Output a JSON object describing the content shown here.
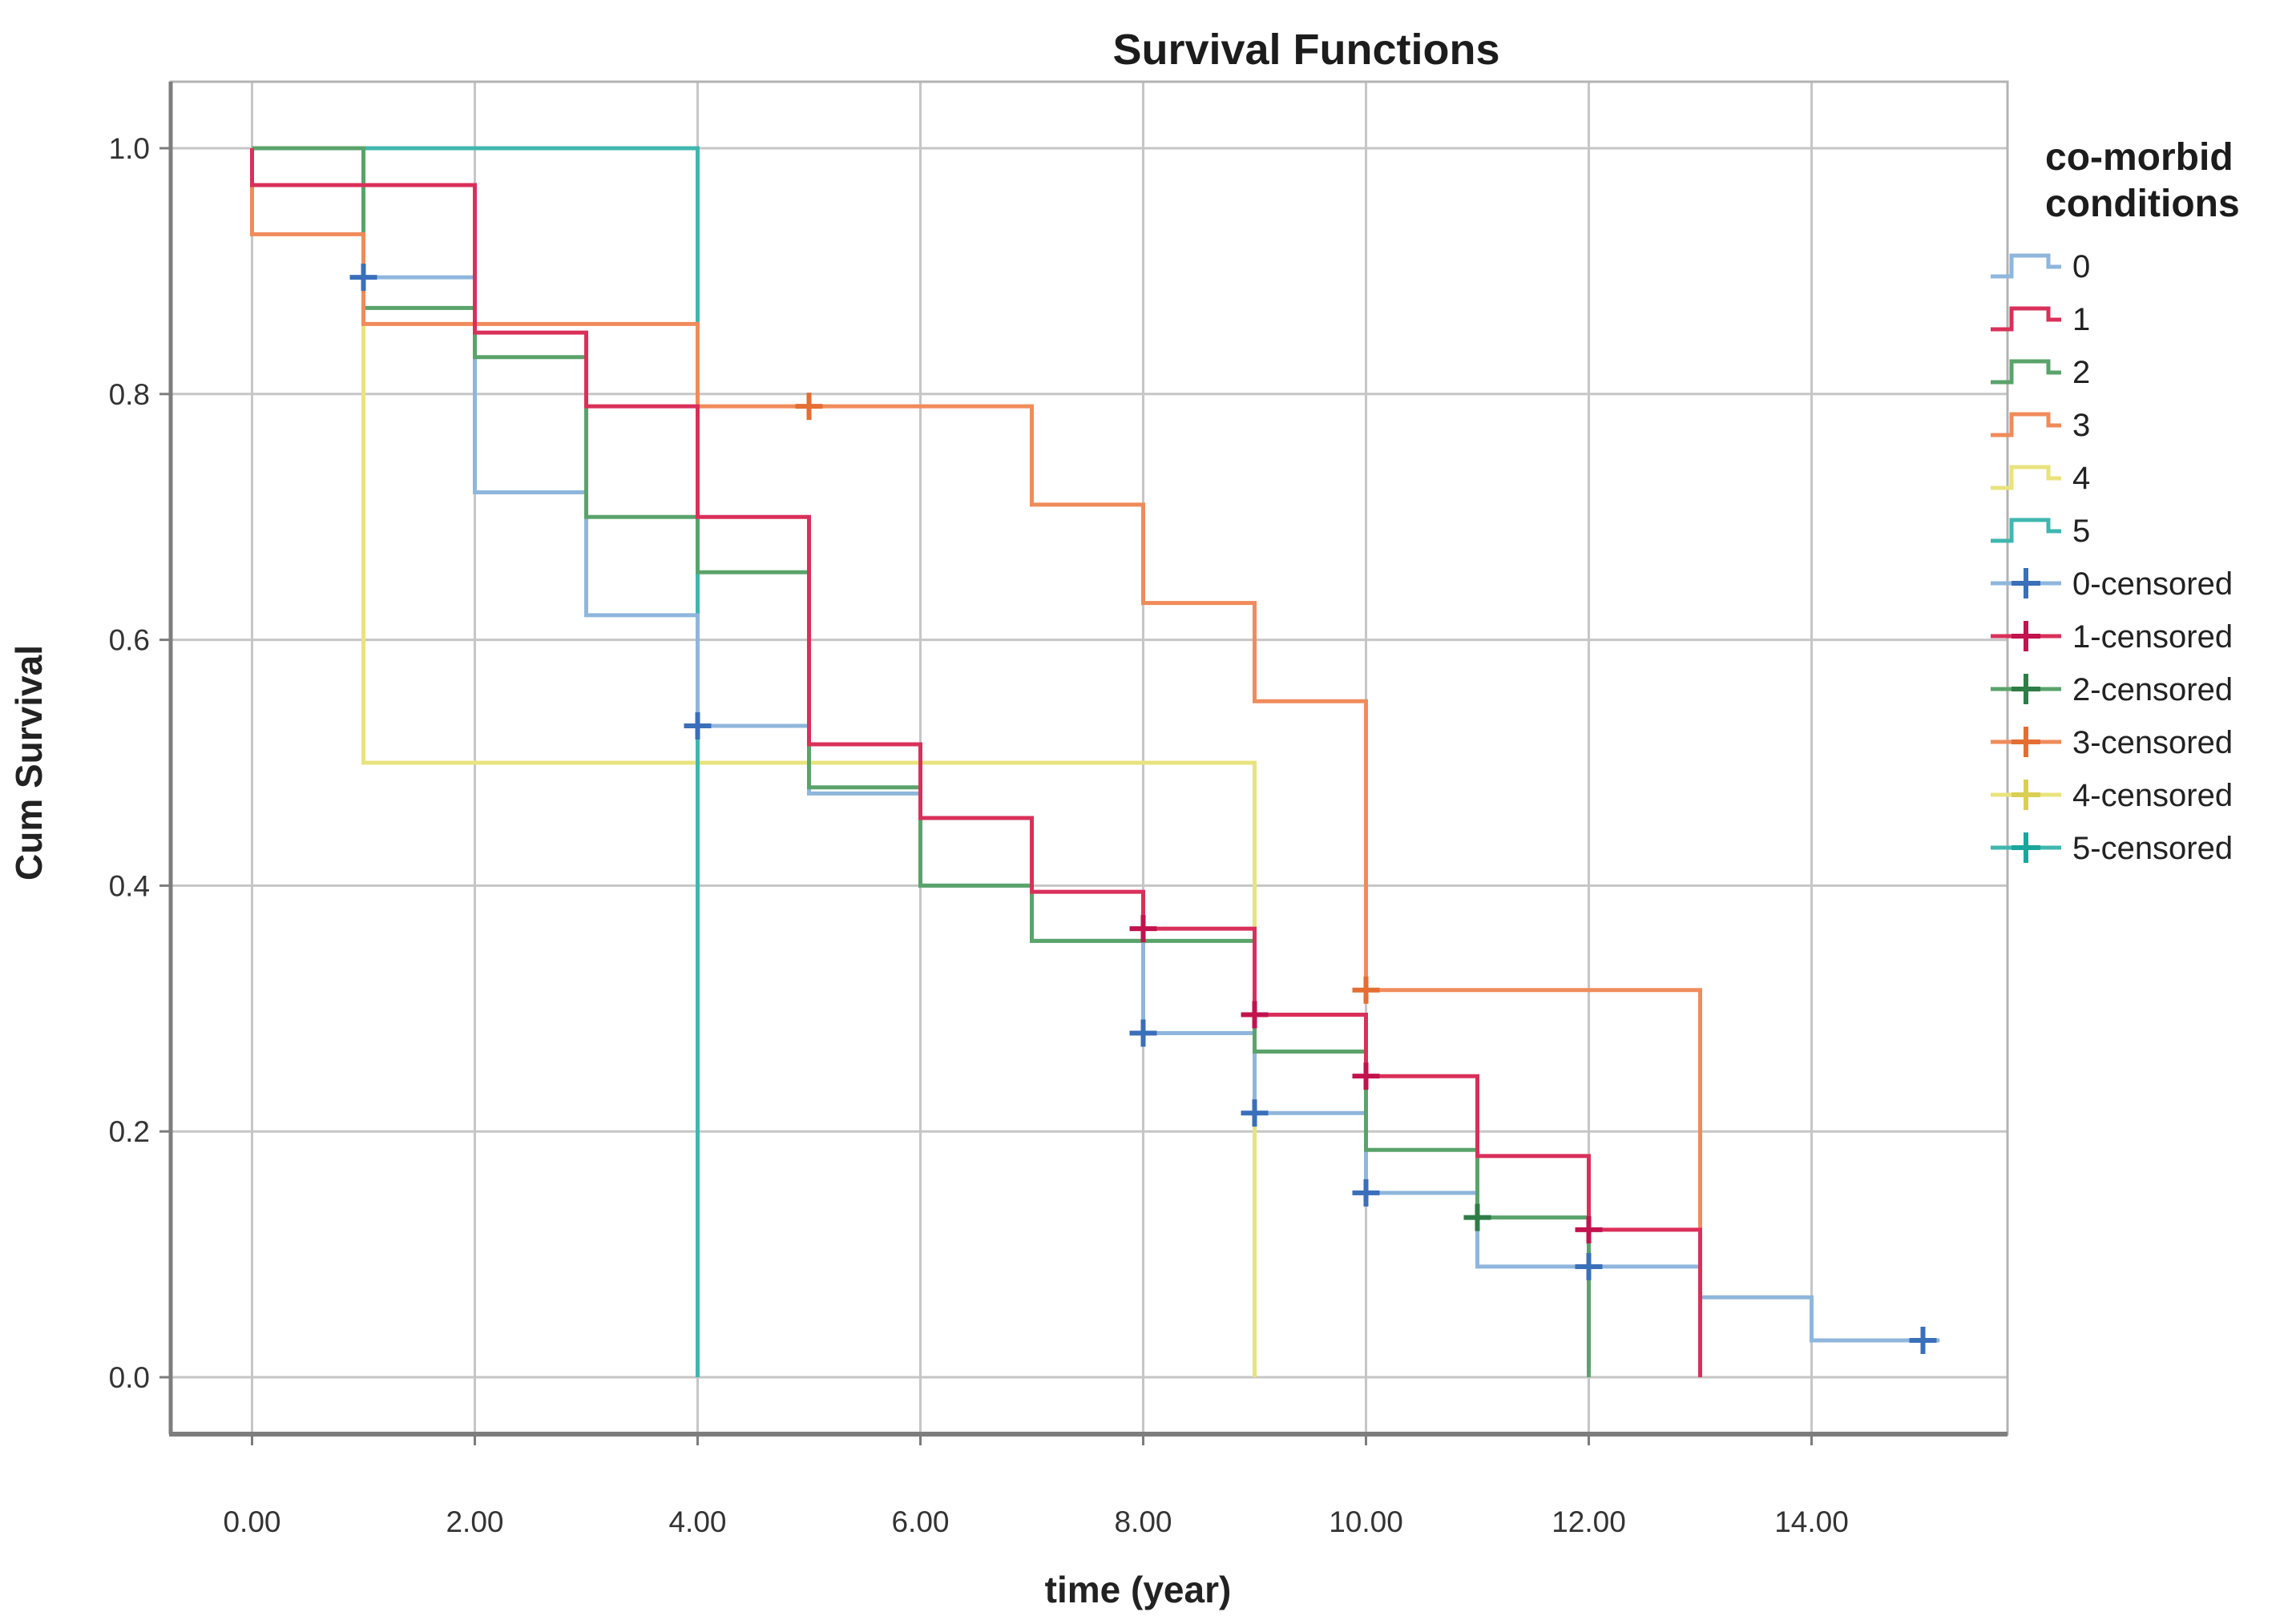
{
  "chart_data": {
    "type": "line",
    "subtype": "kaplan-meier-step",
    "title": "Survival Functions",
    "xlabel": "time  (year)",
    "ylabel": "Cum Survival",
    "legend_title_line1": "co-morbid",
    "legend_title_line2": "conditions",
    "legend_position": "right",
    "grid": true,
    "xlim": [
      -0.73,
      15.76
    ],
    "ylim": [
      -0.046,
      1.054
    ],
    "x_ticks": {
      "values": [
        0,
        2,
        4,
        6,
        8,
        10,
        12,
        14
      ],
      "labels": [
        "0.00",
        "2.00",
        "4.00",
        "6.00",
        "8.00",
        "10.00",
        "12.00",
        "14.00"
      ]
    },
    "y_ticks": {
      "values": [
        0.0,
        0.2,
        0.4,
        0.6,
        0.8,
        1.0
      ],
      "labels": [
        "0.0",
        "0.2",
        "0.4",
        "0.6",
        "0.8",
        "1.0"
      ]
    },
    "series": [
      {
        "name": "0",
        "color": "#8FB6DC",
        "censor_color": "#3A6FBA",
        "points": [
          [
            0,
            0.97
          ],
          [
            1,
            0.97
          ],
          [
            1,
            0.895
          ],
          [
            2,
            0.895
          ],
          [
            2,
            0.72
          ],
          [
            3,
            0.72
          ],
          [
            3,
            0.62
          ],
          [
            4,
            0.62
          ],
          [
            4,
            0.53
          ],
          [
            5,
            0.53
          ],
          [
            5,
            0.475
          ],
          [
            6,
            0.475
          ],
          [
            6,
            0.4
          ],
          [
            7,
            0.4
          ],
          [
            7,
            0.355
          ],
          [
            8,
            0.355
          ],
          [
            8,
            0.28
          ],
          [
            9,
            0.28
          ],
          [
            9,
            0.215
          ],
          [
            10,
            0.215
          ],
          [
            10,
            0.15
          ],
          [
            11,
            0.15
          ],
          [
            11,
            0.09
          ],
          [
            13,
            0.09
          ],
          [
            13,
            0.065
          ],
          [
            14,
            0.065
          ],
          [
            14,
            0.03
          ],
          [
            15.15,
            0.03
          ]
        ],
        "censored": [
          [
            1,
            0.895
          ],
          [
            4,
            0.53
          ],
          [
            8,
            0.28
          ],
          [
            9,
            0.215
          ],
          [
            10,
            0.15
          ],
          [
            12,
            0.09
          ],
          [
            15,
            0.03
          ]
        ]
      },
      {
        "name": "1",
        "color": "#D93059",
        "censor_color": "#C2134E",
        "points": [
          [
            0,
            1.0
          ],
          [
            0,
            0.97
          ],
          [
            2,
            0.97
          ],
          [
            2,
            0.85
          ],
          [
            3,
            0.85
          ],
          [
            3,
            0.79
          ],
          [
            4,
            0.79
          ],
          [
            4,
            0.7
          ],
          [
            5,
            0.7
          ],
          [
            5,
            0.515
          ],
          [
            6,
            0.515
          ],
          [
            6,
            0.455
          ],
          [
            7,
            0.455
          ],
          [
            7,
            0.395
          ],
          [
            8,
            0.395
          ],
          [
            8,
            0.365
          ],
          [
            9,
            0.365
          ],
          [
            9,
            0.295
          ],
          [
            10,
            0.295
          ],
          [
            10,
            0.245
          ],
          [
            11,
            0.245
          ],
          [
            11,
            0.18
          ],
          [
            12,
            0.18
          ],
          [
            12,
            0.12
          ],
          [
            13,
            0.12
          ],
          [
            13,
            0.0
          ]
        ],
        "censored": [
          [
            8,
            0.365
          ],
          [
            9,
            0.295
          ],
          [
            10,
            0.245
          ],
          [
            12,
            0.12
          ]
        ]
      },
      {
        "name": "2",
        "color": "#5AA36B",
        "censor_color": "#2E7D46",
        "points": [
          [
            0,
            1.0
          ],
          [
            1,
            1.0
          ],
          [
            1,
            0.87
          ],
          [
            2,
            0.87
          ],
          [
            2,
            0.83
          ],
          [
            3,
            0.83
          ],
          [
            3,
            0.7
          ],
          [
            4,
            0.7
          ],
          [
            4,
            0.655
          ],
          [
            5,
            0.655
          ],
          [
            5,
            0.48
          ],
          [
            6,
            0.48
          ],
          [
            6,
            0.4
          ],
          [
            7,
            0.4
          ],
          [
            7,
            0.355
          ],
          [
            9,
            0.355
          ],
          [
            9,
            0.265
          ],
          [
            10,
            0.265
          ],
          [
            10,
            0.185
          ],
          [
            11,
            0.185
          ],
          [
            11,
            0.13
          ],
          [
            12,
            0.13
          ],
          [
            12,
            0.0
          ]
        ],
        "censored": [
          [
            11,
            0.13
          ]
        ]
      },
      {
        "name": "3",
        "color": "#F08B5B",
        "censor_color": "#E46E33",
        "points": [
          [
            0,
            1.0
          ],
          [
            0,
            0.93
          ],
          [
            1,
            0.93
          ],
          [
            1,
            0.857
          ],
          [
            4,
            0.857
          ],
          [
            4,
            0.79
          ],
          [
            7,
            0.79
          ],
          [
            7,
            0.71
          ],
          [
            8,
            0.71
          ],
          [
            8,
            0.63
          ],
          [
            9,
            0.63
          ],
          [
            9,
            0.55
          ],
          [
            10,
            0.55
          ],
          [
            10,
            0.315
          ],
          [
            13,
            0.315
          ],
          [
            13,
            0.0
          ]
        ],
        "censored": [
          [
            5,
            0.79
          ],
          [
            10,
            0.315
          ]
        ]
      },
      {
        "name": "4",
        "color": "#E9E37E",
        "censor_color": "#D9CF52",
        "points": [
          [
            0,
            1.0
          ],
          [
            1,
            1.0
          ],
          [
            1,
            0.5
          ],
          [
            9,
            0.5
          ],
          [
            9,
            0.0
          ]
        ],
        "censored": []
      },
      {
        "name": "5",
        "color": "#3FB7AF",
        "censor_color": "#19A79D",
        "points": [
          [
            0,
            1.0
          ],
          [
            4,
            1.0
          ],
          [
            4,
            0.0
          ]
        ],
        "censored": []
      }
    ],
    "legend_entries": [
      {
        "label": "0",
        "type": "step",
        "series": 0
      },
      {
        "label": "1",
        "type": "step",
        "series": 1
      },
      {
        "label": "2",
        "type": "step",
        "series": 2
      },
      {
        "label": "3",
        "type": "step",
        "series": 3
      },
      {
        "label": "4",
        "type": "step",
        "series": 4
      },
      {
        "label": "5",
        "type": "step",
        "series": 5
      },
      {
        "label": "0-censored",
        "type": "censor",
        "series": 0
      },
      {
        "label": "1-censored",
        "type": "censor",
        "series": 1
      },
      {
        "label": "2-censored",
        "type": "censor",
        "series": 2
      },
      {
        "label": "3-censored",
        "type": "censor",
        "series": 3
      },
      {
        "label": "4-censored",
        "type": "censor",
        "series": 4
      },
      {
        "label": "5-censored",
        "type": "censor",
        "series": 5
      }
    ]
  }
}
